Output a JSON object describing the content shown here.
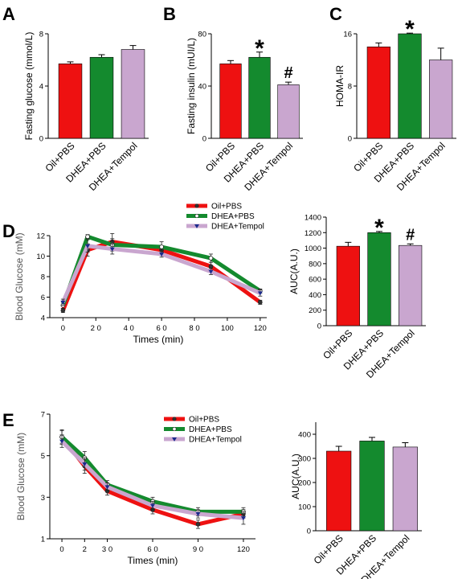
{
  "colors": {
    "oil": "#ee1111",
    "dhea": "#148a2e",
    "tempol": "#c9a6cf",
    "tempol_marker": "#1a2a8c"
  },
  "chart_data": [
    {
      "panel": "A",
      "type": "bar",
      "categories": [
        "Oil+PBS",
        "DHEA+PBS",
        "DHEA+Tempol"
      ],
      "values": [
        5.7,
        6.2,
        6.8
      ],
      "errors": [
        0.15,
        0.2,
        0.3
      ],
      "ylabel": "Fasting glucose (mmol/L)",
      "ylim": [
        0,
        8
      ],
      "yticks": [
        "0",
        "4",
        "8"
      ],
      "annotations": [
        "",
        "",
        ""
      ]
    },
    {
      "panel": "B",
      "type": "bar",
      "categories": [
        "Oil+PBS",
        "DHEA+PBS",
        "DHEA+Tempol"
      ],
      "values": [
        57,
        62,
        41
      ],
      "errors": [
        2.5,
        4,
        2
      ],
      "ylabel": "Fasting insulin (mUI/L)",
      "ylim": [
        0,
        80
      ],
      "yticks": [
        "0",
        "40",
        "80"
      ],
      "annotations": [
        "",
        "*",
        "#"
      ]
    },
    {
      "panel": "C",
      "type": "bar",
      "categories": [
        "Oil+PBS",
        "DHEA+PBS",
        "DHEA+Tempol"
      ],
      "values": [
        14,
        16,
        12
      ],
      "errors": [
        0.6,
        0.1,
        1.8
      ],
      "ylabel": "HOMA-IR",
      "ylim": [
        0,
        16
      ],
      "yticks": [
        "0",
        "8",
        "16"
      ],
      "annotations": [
        "",
        "*",
        ""
      ]
    },
    {
      "panel": "D",
      "type": "line",
      "x": [
        0,
        15,
        30,
        60,
        90,
        120
      ],
      "xticks": [
        "0",
        "2 0",
        "4 0",
        "6 0",
        "8 0",
        "100",
        "120"
      ],
      "xtick_values": [
        0,
        20,
        40,
        60,
        80,
        100,
        120
      ],
      "xlim": [
        -8,
        124
      ],
      "ylim": [
        4,
        12
      ],
      "yticks": [
        4,
        6,
        8,
        10,
        12
      ],
      "xlabel": "Times (min)",
      "ylabel": "Blood Glucose (mM)",
      "series": [
        {
          "name": "Oil+PBS",
          "key": "oil",
          "values": [
            4.7,
            10.6,
            11.4,
            10.6,
            9.0,
            5.5
          ],
          "errors": [
            0.2,
            0.6,
            0.8,
            0.4,
            0.4,
            0.2
          ]
        },
        {
          "name": "DHEA+PBS",
          "key": "dhea",
          "values": [
            5.2,
            11.9,
            11.1,
            10.9,
            9.8,
            6.6
          ],
          "errors": [
            0.3,
            0.2,
            0.6,
            0.5,
            0.4,
            0.2
          ]
        },
        {
          "name": "DHEA+Tempol",
          "key": "tempol",
          "values": [
            5.5,
            11.0,
            10.7,
            10.2,
            8.5,
            6.4
          ],
          "errors": [
            0.3,
            0.6,
            0.5,
            0.3,
            0.3,
            0.3
          ]
        }
      ]
    },
    {
      "panel": "D",
      "type": "bar",
      "categories": [
        "Oil+PBS",
        "DHEA+PBS",
        "DHEA+Tempol"
      ],
      "values": [
        1025,
        1200,
        1035
      ],
      "errors": [
        50,
        15,
        20
      ],
      "ylabel": "AUC(A.U.)",
      "ylim": [
        0,
        1400
      ],
      "yticks": [
        "0",
        "200",
        "400",
        "600",
        "800",
        "1000",
        "1200",
        "1400"
      ],
      "annotations": [
        "",
        "*",
        "#"
      ]
    },
    {
      "panel": "E",
      "type": "line",
      "x": [
        0,
        15,
        30,
        60,
        90,
        120
      ],
      "xticks": [
        "0",
        "2",
        "3 0",
        "6 0",
        "9 0",
        "120"
      ],
      "xtick_values": [
        0,
        15,
        30,
        60,
        90,
        120
      ],
      "xlim": [
        -8,
        128
      ],
      "ylim": [
        1,
        7
      ],
      "yticks": [
        1,
        3,
        5,
        7
      ],
      "xlabel": "Times (min)",
      "ylabel": "Blood Glucose (mM)",
      "series": [
        {
          "name": "Oil+PBS",
          "key": "oil",
          "values": [
            5.9,
            4.5,
            3.3,
            2.4,
            1.7,
            2.2
          ],
          "errors": [
            0.35,
            0.35,
            0.2,
            0.2,
            0.2,
            0.2
          ]
        },
        {
          "name": "DHEA+PBS",
          "key": "dhea",
          "values": [
            5.9,
            4.9,
            3.6,
            2.8,
            2.3,
            2.3
          ],
          "errors": [
            0.3,
            0.3,
            0.2,
            0.2,
            0.2,
            0.2
          ]
        },
        {
          "name": "DHEA+Tempol",
          "key": "tempol",
          "values": [
            5.7,
            4.6,
            3.5,
            2.6,
            2.2,
            2.0
          ],
          "errors": [
            0.3,
            0.3,
            0.2,
            0.2,
            0.2,
            0.3
          ]
        }
      ]
    },
    {
      "panel": "E",
      "type": "bar",
      "categories": [
        "Oil+PBS",
        "DHEA+PBS",
        "DHEA+Tempol"
      ],
      "values": [
        330,
        372,
        347
      ],
      "errors": [
        20,
        15,
        18
      ],
      "ylabel": "AUC(A.U.)",
      "ylim": [
        0,
        450
      ],
      "yticks": [
        "0",
        "100",
        "200",
        "300",
        "400"
      ],
      "annotations": [
        "",
        "",
        ""
      ]
    }
  ]
}
